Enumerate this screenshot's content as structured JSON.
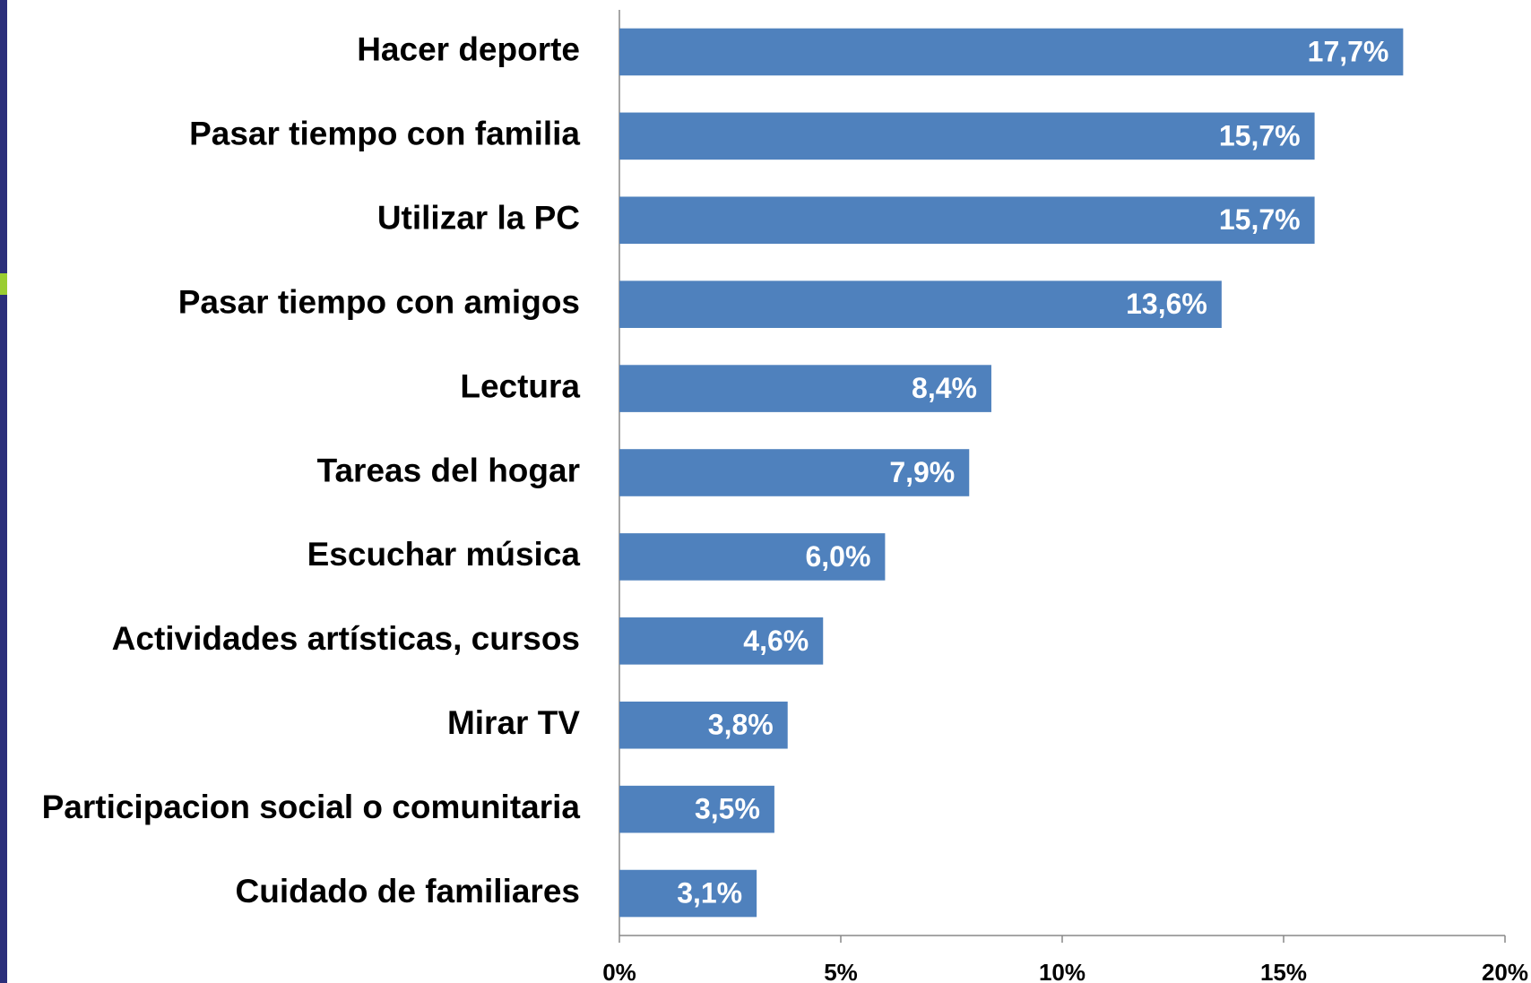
{
  "chart_data": {
    "type": "bar",
    "orientation": "horizontal",
    "categories": [
      "Hacer deporte",
      "Pasar tiempo con familia",
      "Utilizar la PC",
      "Pasar tiempo con amigos",
      "Lectura",
      "Tareas del hogar",
      "Escuchar música",
      "Actividades artísticas, cursos",
      "Mirar TV",
      "Participacion social o comunitaria",
      "Cuidado de familiares"
    ],
    "values": [
      17.7,
      15.7,
      15.7,
      13.6,
      8.4,
      7.9,
      6.0,
      4.6,
      3.8,
      3.5,
      3.1
    ],
    "value_labels": [
      "17,7%",
      "15,7%",
      "15,7%",
      "13,6%",
      "8,4%",
      "7,9%",
      "6,0%",
      "4,6%",
      "3,8%",
      "3,5%",
      "3,1%"
    ],
    "color": "#4f81bd",
    "xlim": [
      0,
      20
    ],
    "xticks": [
      {
        "value": 0,
        "label": "0%"
      },
      {
        "value": 5,
        "label": "5%"
      },
      {
        "value": 10,
        "label": "10%"
      },
      {
        "value": 15,
        "label": "15%"
      },
      {
        "value": 20,
        "label": "20%"
      }
    ],
    "grid": false
  }
}
